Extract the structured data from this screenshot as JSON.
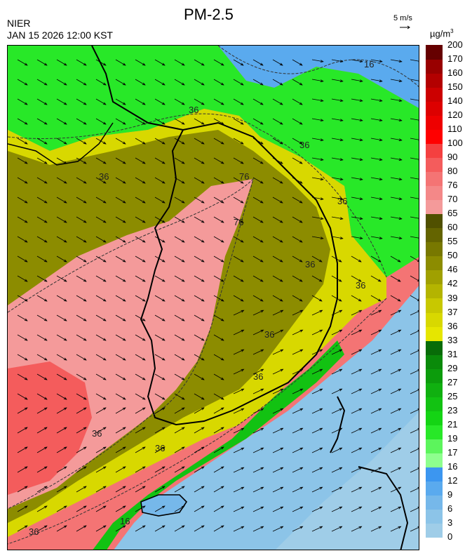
{
  "header": {
    "agency": "NIER",
    "datetime": "JAN 15 2026 12:00 KST",
    "title": "PM-2.5",
    "wind_reference": "5 m/s",
    "unit_base": "µg/m",
    "unit_exp": "3"
  },
  "legend": {
    "ticks": [
      "0",
      "3",
      "6",
      "9",
      "12",
      "16",
      "17",
      "19",
      "21",
      "23",
      "25",
      "27",
      "29",
      "31",
      "33",
      "36",
      "37",
      "39",
      "42",
      "46",
      "50",
      "55",
      "60",
      "65",
      "70",
      "76",
      "80",
      "90",
      "100",
      "110",
      "120",
      "140",
      "150",
      "160",
      "170",
      "200"
    ],
    "colors": [
      "#9fcde8",
      "#8cc4e8",
      "#76b8ea",
      "#5aaaee",
      "#3c96f0",
      "#8eff8e",
      "#5cf55c",
      "#28e828",
      "#14d414",
      "#12c212",
      "#10b010",
      "#0c9c0c",
      "#0a8a0a",
      "#086c08",
      "#e6e600",
      "#d8d800",
      "#c8c800",
      "#b4b400",
      "#a0a000",
      "#8c8c00",
      "#787800",
      "#646400",
      "#505000",
      "#f49a9a",
      "#f48888",
      "#f47474",
      "#f45c5c",
      "#f44040",
      "#ff0000",
      "#ee0000",
      "#dd0000",
      "#cc0000",
      "#b30000",
      "#990000",
      "#660000"
    ]
  },
  "map": {
    "contour_labels": [
      "16",
      "36",
      "36",
      "36",
      "36",
      "76",
      "76",
      "36",
      "36",
      "36",
      "36",
      "36",
      "36",
      "16",
      "36"
    ]
  }
}
